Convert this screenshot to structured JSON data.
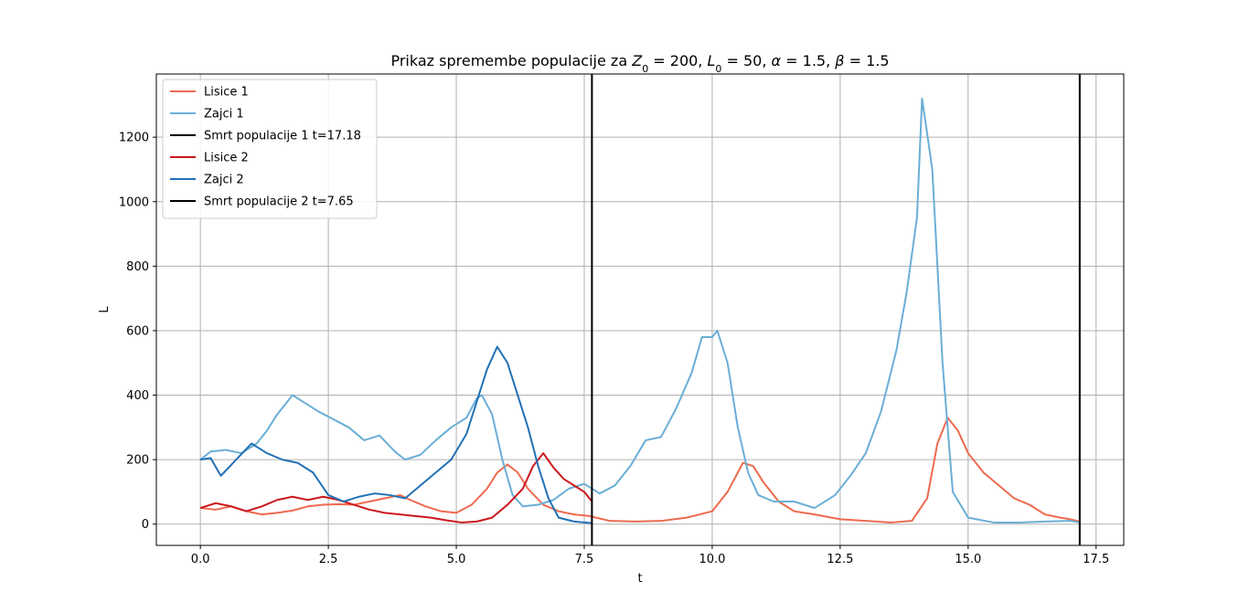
{
  "chart_data": {
    "type": "line",
    "title": {
      "parts": [
        {
          "t": "Prikaz spremembe populacije za "
        },
        {
          "t": "Z",
          "it": true
        },
        {
          "t": "0",
          "sub": true
        },
        {
          "t": " = 200, "
        },
        {
          "t": "L",
          "it": true
        },
        {
          "t": "0",
          "sub": true
        },
        {
          "t": " = 50, "
        },
        {
          "t": "α",
          "it": true
        },
        {
          "t": " = 1.5, "
        },
        {
          "t": "β",
          "it": true
        },
        {
          "t": " = 1.5"
        }
      ]
    },
    "xlabel": "t",
    "ylabel": "L",
    "xlim": [
      -0.86,
      18.04
    ],
    "ylim": [
      -66,
      1396
    ],
    "xticks": [
      0.0,
      2.5,
      5.0,
      7.5,
      10.0,
      12.5,
      15.0,
      17.5
    ],
    "xtick_labels": [
      "0.0",
      "2.5",
      "5.0",
      "7.5",
      "10.0",
      "12.5",
      "15.0",
      "17.5"
    ],
    "yticks": [
      0,
      200,
      400,
      600,
      800,
      1000,
      1200
    ],
    "ytick_labels": [
      "0",
      "200",
      "400",
      "600",
      "800",
      "1000",
      "1200"
    ],
    "grid": true,
    "legend_position": "top-left",
    "series": [
      {
        "name": "Lisice 1",
        "color": "#ee6a4f",
        "points": [
          [
            0,
            50
          ],
          [
            0.3,
            45
          ],
          [
            0.6,
            55
          ],
          [
            0.9,
            40
          ],
          [
            1.2,
            30
          ],
          [
            1.5,
            35
          ],
          [
            1.8,
            42
          ],
          [
            2.1,
            55
          ],
          [
            2.4,
            60
          ],
          [
            2.7,
            62
          ],
          [
            3.0,
            60
          ],
          [
            3.3,
            70
          ],
          [
            3.6,
            80
          ],
          [
            3.9,
            90
          ],
          [
            4.1,
            75
          ],
          [
            4.4,
            55
          ],
          [
            4.7,
            40
          ],
          [
            5.0,
            35
          ],
          [
            5.3,
            60
          ],
          [
            5.6,
            110
          ],
          [
            5.8,
            160
          ],
          [
            6.0,
            185
          ],
          [
            6.2,
            160
          ],
          [
            6.4,
            110
          ],
          [
            6.7,
            60
          ],
          [
            7.0,
            40
          ],
          [
            7.3,
            30
          ],
          [
            7.6,
            25
          ],
          [
            8.0,
            10
          ],
          [
            8.5,
            8
          ],
          [
            9.0,
            10
          ],
          [
            9.5,
            20
          ],
          [
            10.0,
            40
          ],
          [
            10.3,
            100
          ],
          [
            10.6,
            190
          ],
          [
            10.8,
            180
          ],
          [
            11.0,
            130
          ],
          [
            11.3,
            70
          ],
          [
            11.6,
            40
          ],
          [
            12.0,
            30
          ],
          [
            12.5,
            15
          ],
          [
            13.0,
            10
          ],
          [
            13.5,
            5
          ],
          [
            13.9,
            10
          ],
          [
            14.2,
            80
          ],
          [
            14.4,
            250
          ],
          [
            14.6,
            330
          ],
          [
            14.8,
            290
          ],
          [
            15.0,
            220
          ],
          [
            15.3,
            160
          ],
          [
            15.6,
            120
          ],
          [
            15.9,
            80
          ],
          [
            16.2,
            60
          ],
          [
            16.5,
            30
          ],
          [
            16.8,
            20
          ],
          [
            17.0,
            15
          ],
          [
            17.18,
            8
          ]
        ]
      },
      {
        "name": "Zajci 1",
        "color": "#6aaed6",
        "points": [
          [
            0,
            200
          ],
          [
            0.2,
            225
          ],
          [
            0.5,
            230
          ],
          [
            0.8,
            220
          ],
          [
            1.1,
            250
          ],
          [
            1.3,
            290
          ],
          [
            1.5,
            340
          ],
          [
            1.8,
            400
          ],
          [
            2.0,
            380
          ],
          [
            2.3,
            350
          ],
          [
            2.6,
            325
          ],
          [
            2.9,
            300
          ],
          [
            3.2,
            260
          ],
          [
            3.5,
            275
          ],
          [
            3.8,
            225
          ],
          [
            4.0,
            200
          ],
          [
            4.3,
            215
          ],
          [
            4.6,
            260
          ],
          [
            4.9,
            300
          ],
          [
            5.2,
            330
          ],
          [
            5.4,
            390
          ],
          [
            5.5,
            400
          ],
          [
            5.7,
            340
          ],
          [
            5.9,
            200
          ],
          [
            6.1,
            90
          ],
          [
            6.3,
            55
          ],
          [
            6.6,
            60
          ],
          [
            6.9,
            75
          ],
          [
            7.2,
            110
          ],
          [
            7.5,
            125
          ],
          [
            7.8,
            95
          ],
          [
            8.1,
            120
          ],
          [
            8.4,
            180
          ],
          [
            8.7,
            260
          ],
          [
            9.0,
            270
          ],
          [
            9.3,
            360
          ],
          [
            9.6,
            470
          ],
          [
            9.8,
            580
          ],
          [
            10.0,
            580
          ],
          [
            10.1,
            600
          ],
          [
            10.3,
            500
          ],
          [
            10.5,
            300
          ],
          [
            10.7,
            160
          ],
          [
            10.9,
            90
          ],
          [
            11.2,
            70
          ],
          [
            11.6,
            70
          ],
          [
            12.0,
            50
          ],
          [
            12.4,
            90
          ],
          [
            12.7,
            150
          ],
          [
            13.0,
            220
          ],
          [
            13.3,
            350
          ],
          [
            13.6,
            540
          ],
          [
            13.8,
            720
          ],
          [
            14.0,
            950
          ],
          [
            14.1,
            1320
          ],
          [
            14.3,
            1100
          ],
          [
            14.5,
            500
          ],
          [
            14.7,
            100
          ],
          [
            15.0,
            20
          ],
          [
            15.5,
            5
          ],
          [
            16.0,
            5
          ],
          [
            16.5,
            8
          ],
          [
            17.0,
            10
          ],
          [
            17.18,
            5
          ]
        ]
      },
      {
        "name": "Smrt populacije 1 t=17.18",
        "color": "#000000",
        "vline": 17.18
      },
      {
        "name": "Lisice 2",
        "color": "#cb181d",
        "points": [
          [
            0,
            50
          ],
          [
            0.3,
            65
          ],
          [
            0.6,
            55
          ],
          [
            0.9,
            40
          ],
          [
            1.2,
            55
          ],
          [
            1.5,
            75
          ],
          [
            1.8,
            85
          ],
          [
            2.1,
            75
          ],
          [
            2.4,
            85
          ],
          [
            2.7,
            75
          ],
          [
            3.0,
            60
          ],
          [
            3.3,
            45
          ],
          [
            3.6,
            35
          ],
          [
            3.9,
            30
          ],
          [
            4.2,
            25
          ],
          [
            4.5,
            20
          ],
          [
            4.8,
            12
          ],
          [
            5.1,
            5
          ],
          [
            5.4,
            8
          ],
          [
            5.7,
            20
          ],
          [
            6.0,
            60
          ],
          [
            6.3,
            110
          ],
          [
            6.5,
            180
          ],
          [
            6.7,
            220
          ],
          [
            6.9,
            175
          ],
          [
            7.1,
            140
          ],
          [
            7.3,
            120
          ],
          [
            7.5,
            100
          ],
          [
            7.65,
            70
          ]
        ]
      },
      {
        "name": "Zajci 2",
        "color": "#2171b5",
        "points": [
          [
            0,
            200
          ],
          [
            0.2,
            205
          ],
          [
            0.4,
            150
          ],
          [
            0.7,
            200
          ],
          [
            1.0,
            250
          ],
          [
            1.3,
            220
          ],
          [
            1.6,
            200
          ],
          [
            1.9,
            190
          ],
          [
            2.2,
            160
          ],
          [
            2.5,
            90
          ],
          [
            2.8,
            70
          ],
          [
            3.1,
            85
          ],
          [
            3.4,
            95
          ],
          [
            3.7,
            90
          ],
          [
            4.0,
            80
          ],
          [
            4.3,
            120
          ],
          [
            4.6,
            160
          ],
          [
            4.9,
            200
          ],
          [
            5.2,
            280
          ],
          [
            5.4,
            380
          ],
          [
            5.6,
            480
          ],
          [
            5.8,
            550
          ],
          [
            6.0,
            500
          ],
          [
            6.2,
            400
          ],
          [
            6.4,
            300
          ],
          [
            6.6,
            180
          ],
          [
            6.8,
            80
          ],
          [
            7.0,
            20
          ],
          [
            7.3,
            8
          ],
          [
            7.65,
            3
          ]
        ]
      },
      {
        "name": "Smrt populacije 2 t=7.65",
        "color": "#000000",
        "vline": 7.65
      }
    ]
  }
}
